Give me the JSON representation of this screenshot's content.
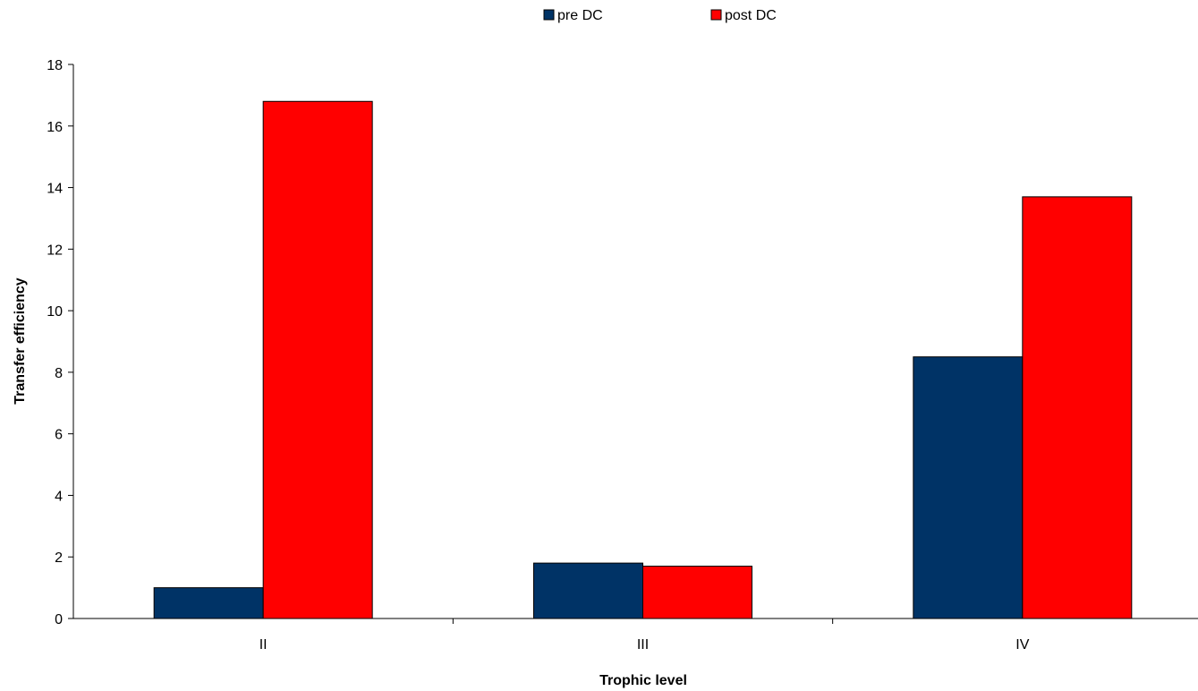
{
  "chart_data": {
    "type": "bar",
    "categories": [
      "II",
      "III",
      "IV"
    ],
    "series": [
      {
        "name": "pre DC",
        "values": [
          1.0,
          1.8,
          8.5
        ],
        "color": "#003366"
      },
      {
        "name": "post DC",
        "values": [
          16.8,
          1.7,
          13.7
        ],
        "color": "#ff0000"
      }
    ],
    "xlabel": "Trophic level",
    "ylabel": "Transfer efficiency",
    "ylim": [
      0,
      18
    ],
    "yticks": [
      0,
      2,
      4,
      6,
      8,
      10,
      12,
      14,
      16,
      18
    ],
    "grid": false,
    "legend_position": "top"
  }
}
